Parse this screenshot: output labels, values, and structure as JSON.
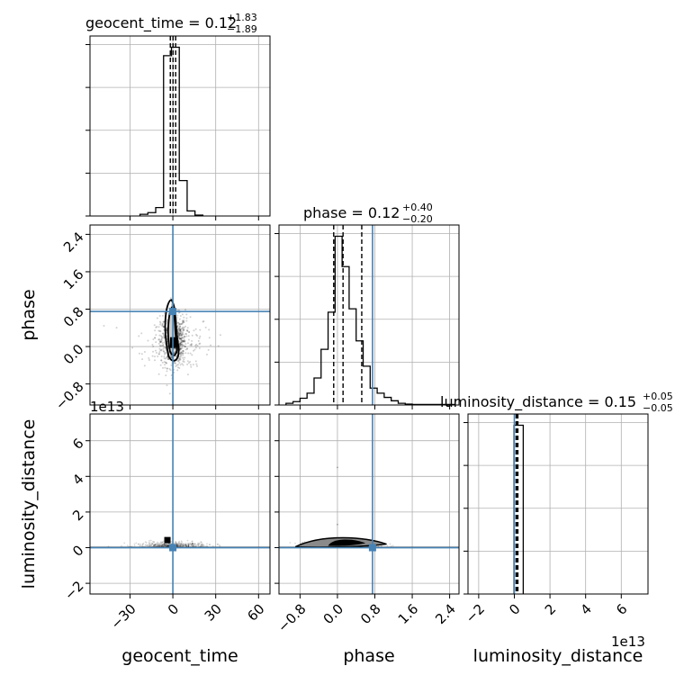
{
  "chart_data": {
    "type": "corner",
    "parameters": [
      "geocent_time",
      "phase",
      "luminosity_distance"
    ],
    "axis_labels": {
      "geocent_time": "geocent_time",
      "phase": "phase",
      "luminosity_distance": "luminosity_distance"
    },
    "truths": {
      "geocent_time": 0,
      "phase": 0.75,
      "luminosity_distance": 0
    },
    "titles": [
      {
        "param": "geocent_time",
        "text": "geocent_time = 0.12",
        "plus": "+1.83",
        "minus": "−1.89"
      },
      {
        "param": "phase",
        "text": "phase = 0.12",
        "plus": "+0.40",
        "minus": "−0.20"
      },
      {
        "param": "luminosity_distance",
        "text": "luminosity_distance = 0.15",
        "plus": "+0.05",
        "minus": "−0.05"
      }
    ],
    "ranges": {
      "geocent_time": [
        -58,
        68
      ],
      "phase": [
        -1.25,
        2.6
      ],
      "luminosity_distance": [
        -2.6,
        7.5
      ]
    },
    "ticks": {
      "geocent_time": {
        "values": [
          -30,
          0,
          30,
          60
        ],
        "labels": [
          "−30",
          "0",
          "30",
          "60"
        ]
      },
      "phase": {
        "values": [
          -0.8,
          0.0,
          0.8,
          1.6,
          2.4
        ],
        "labels": [
          "−0.8",
          "0.0",
          "0.8",
          "1.6",
          "2.4"
        ]
      },
      "luminosity_distance": {
        "values": [
          -2,
          0,
          2,
          4,
          6
        ],
        "labels": [
          "−2",
          "0",
          "2",
          "4",
          "6"
        ]
      }
    },
    "offset_text": {
      "luminosity_distance": "1e13"
    },
    "hist_geocent_time": {
      "edges": [
        -23,
        -17.5,
        -12,
        -6.5,
        -1,
        4.5,
        10,
        15.5,
        21
      ],
      "counts": [
        0.01,
        0.02,
        0.05,
        0.95,
        1.0,
        0.21,
        0.03,
        0.005
      ],
      "quantiles": [
        -1.77,
        0.12,
        1.95
      ]
    },
    "hist_phase": {
      "edges": [
        -1.1,
        -0.95,
        -0.8,
        -0.65,
        -0.5,
        -0.35,
        -0.2,
        -0.05,
        0.1,
        0.25,
        0.4,
        0.55,
        0.7,
        0.85,
        1.0,
        1.15,
        1.3,
        1.45,
        1.6,
        2.5
      ],
      "counts": [
        0.01,
        0.02,
        0.04,
        0.07,
        0.16,
        0.33,
        0.55,
        1.0,
        0.82,
        0.57,
        0.38,
        0.23,
        0.1,
        0.07,
        0.045,
        0.025,
        0.01,
        0.005,
        0.003
      ],
      "quantiles": [
        -0.08,
        0.12,
        0.52
      ]
    },
    "hist_luminosity_distance": {
      "edges": [
        -0.02,
        0.5
      ],
      "counts": [
        1.0
      ],
      "quantiles": [
        0.1,
        0.15,
        0.2
      ]
    }
  }
}
